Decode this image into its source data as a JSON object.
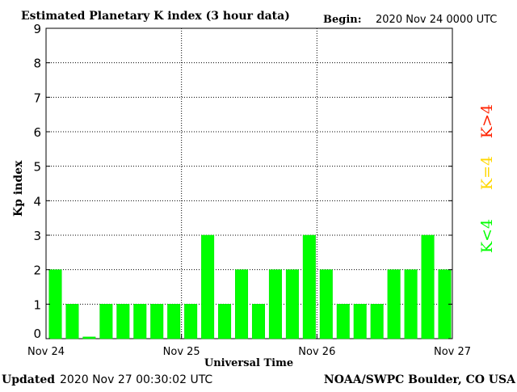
{
  "header": {
    "title": "Estimated Planetary K index (3 hour data)",
    "begin_label": "Begin:",
    "begin_value": "2020 Nov 24 0000 UTC"
  },
  "footer": {
    "updated_label": "Updated",
    "updated_value": "2020 Nov 27 00:30:02 UTC",
    "source": "NOAA/SWPC Boulder, CO USA"
  },
  "legend": {
    "items": [
      {
        "label": "K<4",
        "color": "#00ff00"
      },
      {
        "label": "K=4",
        "color": "#ffd700"
      },
      {
        "label": "K>4",
        "color": "#ff2200"
      }
    ]
  },
  "colors": {
    "bar": "#00ff00",
    "bar_edge": "#00dd00",
    "axis": "#000000",
    "grid": "#000000"
  },
  "chart_data": {
    "type": "bar",
    "title": "Estimated Planetary K index (3 hour data)",
    "xlabel": "Universal Time",
    "ylabel": "Kp index",
    "ylim": [
      0,
      9
    ],
    "yticks": [
      0,
      1,
      2,
      3,
      4,
      5,
      6,
      7,
      8,
      9
    ],
    "xticks": [
      "Nov 24",
      "Nov 25",
      "Nov 26",
      "Nov 27"
    ],
    "bars_per_day": 8,
    "grid": true,
    "values": [
      2,
      1,
      0.05,
      1,
      1,
      1,
      1,
      1,
      1,
      3,
      1,
      2,
      1,
      2,
      2,
      3,
      2,
      1,
      1,
      1,
      2,
      2,
      3,
      2
    ]
  }
}
